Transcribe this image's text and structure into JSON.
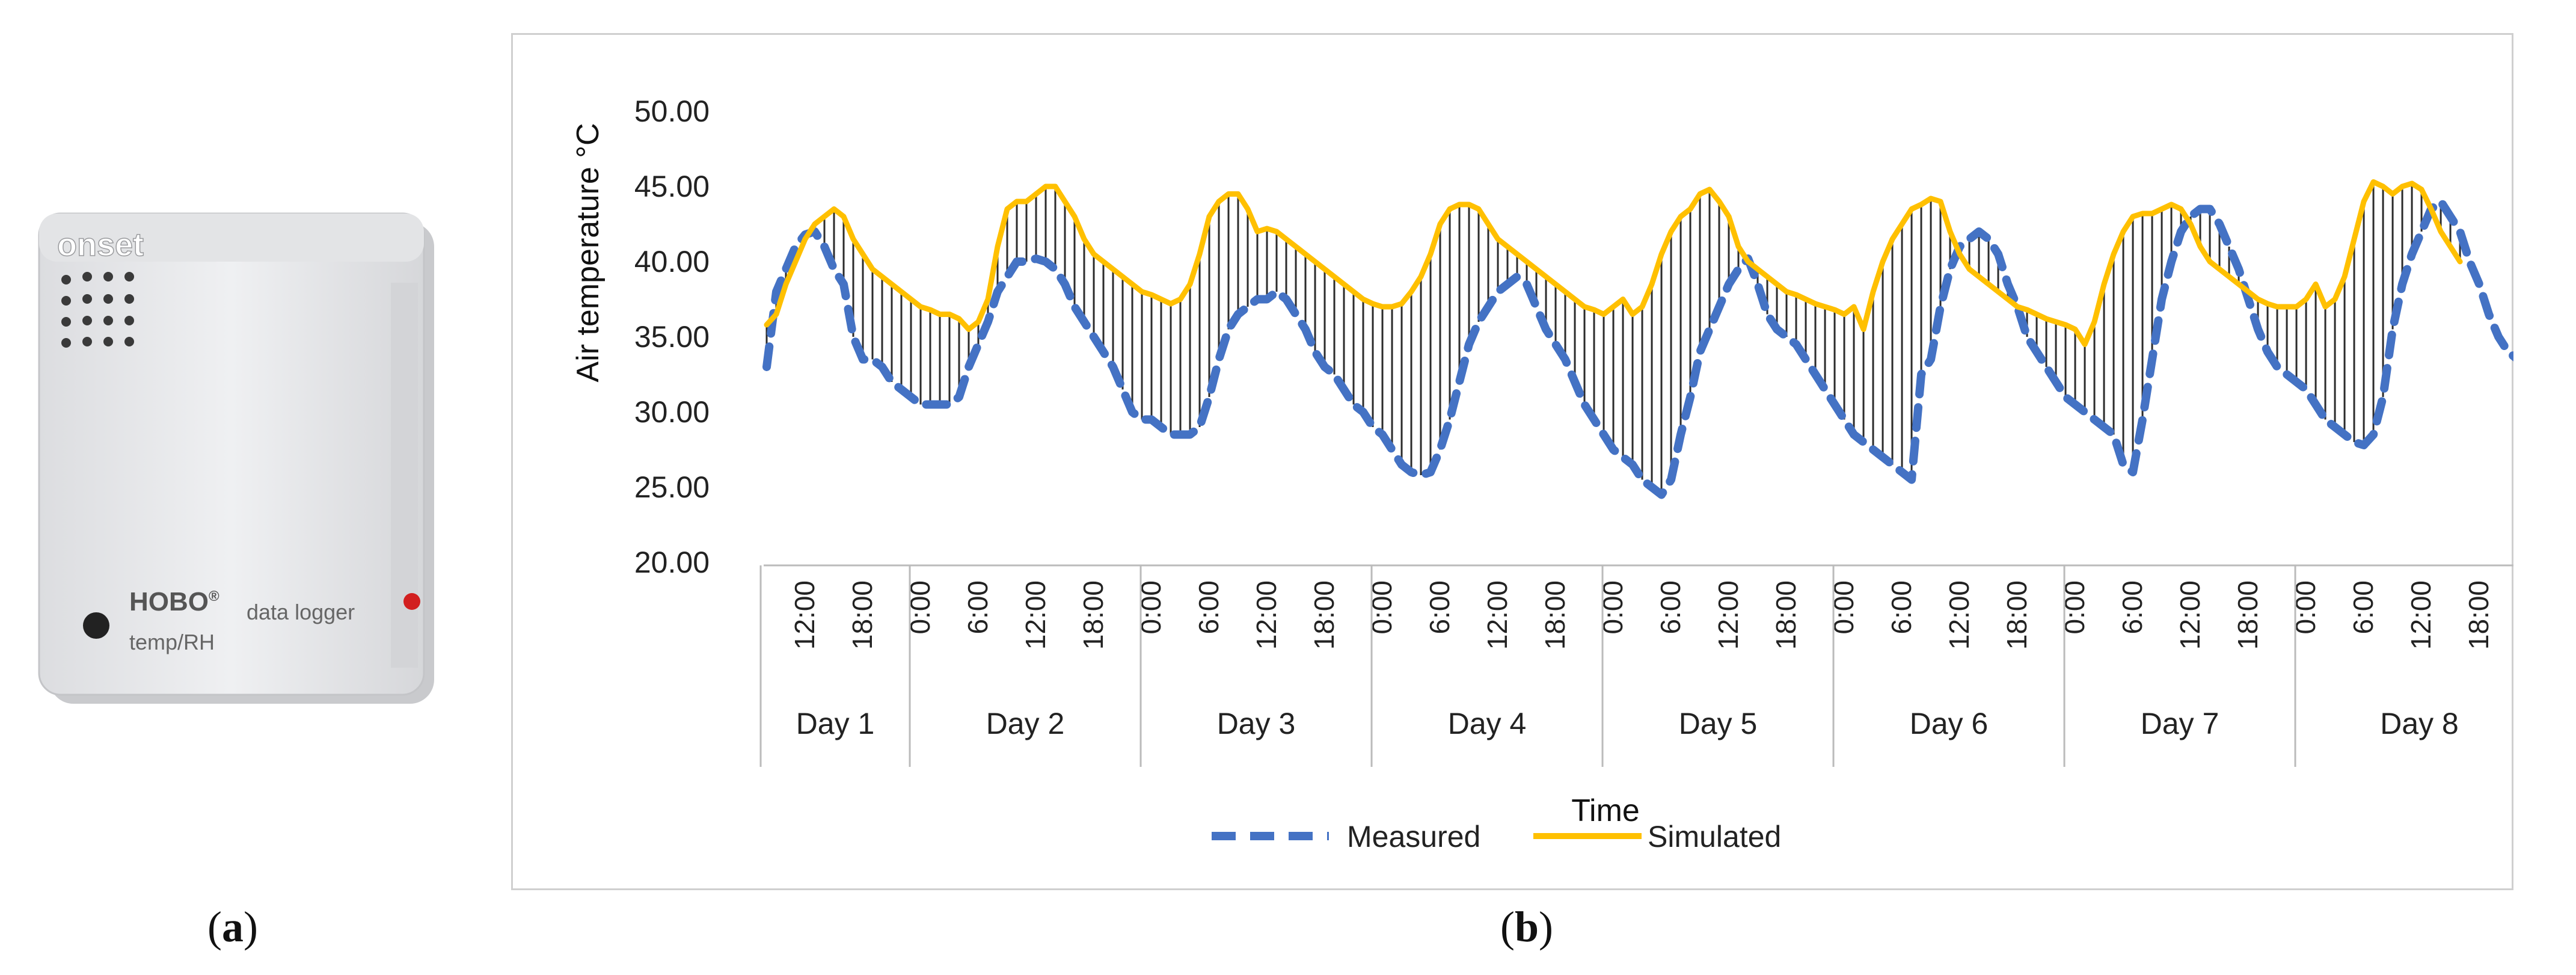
{
  "figure": {
    "panel_a_label": "a",
    "panel_b_label": "b"
  },
  "logger": {
    "brand": "onset",
    "model": "HOBO",
    "model_mark": "®",
    "desc": "data logger",
    "subdesc": "temp/RH",
    "body_color": "#e9eaec",
    "led_color": "#d21f1f"
  },
  "chart_data": {
    "type": "line",
    "title": "",
    "xlabel": "Time",
    "ylabel": "Air temperature °C",
    "ylim": [
      20,
      50
    ],
    "yticks": [
      "50.00",
      "45.00",
      "40.00",
      "35.00",
      "30.00",
      "25.00",
      "20.00"
    ],
    "days": [
      "Day 1",
      "Day 2",
      "Day 3",
      "Day 4",
      "Day 5",
      "Day 6",
      "Day 7",
      "Day 8"
    ],
    "day1_hour_ticks": [
      "12:00",
      "18:00"
    ],
    "hour_ticks": [
      "0:00",
      "6:00",
      "12:00",
      "18:00"
    ],
    "x_start_hour": 8,
    "x_end_hour": 24,
    "sample_interval_hours": 1,
    "grid": false,
    "legend_position": "bottom",
    "series": [
      {
        "name": "Measured",
        "style": "dashed",
        "color": "#4472c4",
        "values": [
          33.0,
          38.0,
          39.5,
          41.0,
          41.8,
          42.0,
          41.0,
          39.5,
          38.5,
          35.0,
          33.5,
          33.5,
          33.0,
          32.0,
          31.5,
          31.0,
          30.5,
          30.5,
          30.5,
          30.5,
          31.0,
          33.0,
          34.5,
          36.0,
          38.0,
          39.0,
          40.0,
          40.0,
          40.2,
          40.0,
          39.5,
          38.5,
          37.0,
          36.0,
          35.0,
          34.0,
          33.0,
          31.5,
          30.0,
          29.5,
          29.5,
          29.0,
          28.5,
          28.5,
          28.5,
          29.0,
          31.0,
          33.5,
          35.5,
          36.5,
          37.0,
          37.5,
          37.5,
          38.0,
          37.5,
          36.5,
          35.5,
          34.0,
          33.0,
          32.5,
          31.5,
          30.5,
          30.0,
          29.0,
          28.5,
          27.5,
          26.5,
          26.0,
          25.8,
          26.0,
          27.5,
          29.5,
          32.0,
          34.5,
          36.0,
          37.0,
          38.0,
          38.5,
          39.0,
          38.5,
          37.0,
          35.5,
          34.5,
          33.5,
          32.0,
          30.5,
          29.5,
          28.5,
          27.5,
          27.0,
          26.5,
          25.5,
          25.0,
          24.5,
          25.5,
          28.5,
          31.0,
          34.0,
          35.5,
          37.0,
          38.5,
          39.5,
          40.2,
          38.5,
          36.5,
          35.5,
          35.0,
          34.5,
          33.5,
          32.5,
          31.5,
          30.5,
          29.5,
          28.5,
          28.0,
          27.5,
          27.0,
          26.5,
          26.0,
          25.5,
          32.5,
          33.5,
          37.0,
          39.5,
          41.0,
          41.5,
          42.0,
          41.5,
          40.5,
          38.5,
          37.0,
          35.0,
          34.0,
          33.0,
          32.0,
          31.0,
          30.5,
          30.0,
          29.5,
          29.0,
          28.5,
          26.5,
          26.0,
          29.5,
          33.5,
          37.5,
          40.0,
          42.0,
          43.0,
          43.5,
          43.5,
          42.5,
          41.0,
          39.5,
          37.5,
          35.5,
          34.0,
          33.0,
          32.5,
          32.0,
          31.5,
          30.5,
          29.5,
          29.0,
          28.5,
          28.0,
          27.8,
          28.5,
          31.0,
          35.5,
          38.5,
          40.5,
          42.0,
          43.5,
          44.0,
          43.0,
          42.0,
          40.0,
          38.5,
          36.5,
          35.0,
          34.0,
          33.5
        ]
      },
      {
        "name": "Simulated",
        "style": "solid",
        "color": "#ffc000",
        "values": [
          35.8,
          36.5,
          38.5,
          40.0,
          41.5,
          42.5,
          43.0,
          43.5,
          43.0,
          41.5,
          40.5,
          39.5,
          39.0,
          38.5,
          38.0,
          37.5,
          37.0,
          36.8,
          36.5,
          36.5,
          36.2,
          35.5,
          36.0,
          37.5,
          41.0,
          43.5,
          44.0,
          44.0,
          44.5,
          45.0,
          45.0,
          44.0,
          43.0,
          41.5,
          40.5,
          40.0,
          39.5,
          39.0,
          38.5,
          38.0,
          37.8,
          37.5,
          37.2,
          37.5,
          38.5,
          40.5,
          43.0,
          44.0,
          44.5,
          44.5,
          43.5,
          42.0,
          42.2,
          42.0,
          41.5,
          41.0,
          40.5,
          40.0,
          39.5,
          39.0,
          38.5,
          38.0,
          37.5,
          37.2,
          37.0,
          37.0,
          37.2,
          38.0,
          39.0,
          40.5,
          42.5,
          43.5,
          43.8,
          43.8,
          43.5,
          42.5,
          41.5,
          41.0,
          40.5,
          40.0,
          39.5,
          39.0,
          38.5,
          38.0,
          37.5,
          37.0,
          36.8,
          36.5,
          37.0,
          37.5,
          36.5,
          37.0,
          38.5,
          40.5,
          42.0,
          43.0,
          43.5,
          44.5,
          44.8,
          44.0,
          43.0,
          41.0,
          40.0,
          39.5,
          39.0,
          38.5,
          38.0,
          37.8,
          37.5,
          37.2,
          37.0,
          36.8,
          36.5,
          37.0,
          35.5,
          38.0,
          40.0,
          41.5,
          42.5,
          43.5,
          43.8,
          44.2,
          44.0,
          42.0,
          40.5,
          39.5,
          39.0,
          38.5,
          38.0,
          37.5,
          37.0,
          36.8,
          36.5,
          36.2,
          36.0,
          35.8,
          35.5,
          34.5,
          36.0,
          38.5,
          40.5,
          42.0,
          43.0,
          43.2,
          43.2,
          43.5,
          43.8,
          43.5,
          42.5,
          41.0,
          40.0,
          39.5,
          39.0,
          38.5,
          38.0,
          37.5,
          37.2,
          37.0,
          37.0,
          37.0,
          37.5,
          38.5,
          37.0,
          37.5,
          39.0,
          41.5,
          44.0,
          45.3,
          45.0,
          44.5,
          45.0,
          45.2,
          44.8,
          43.5,
          42.0,
          41.0,
          40.0
        ]
      }
    ]
  }
}
